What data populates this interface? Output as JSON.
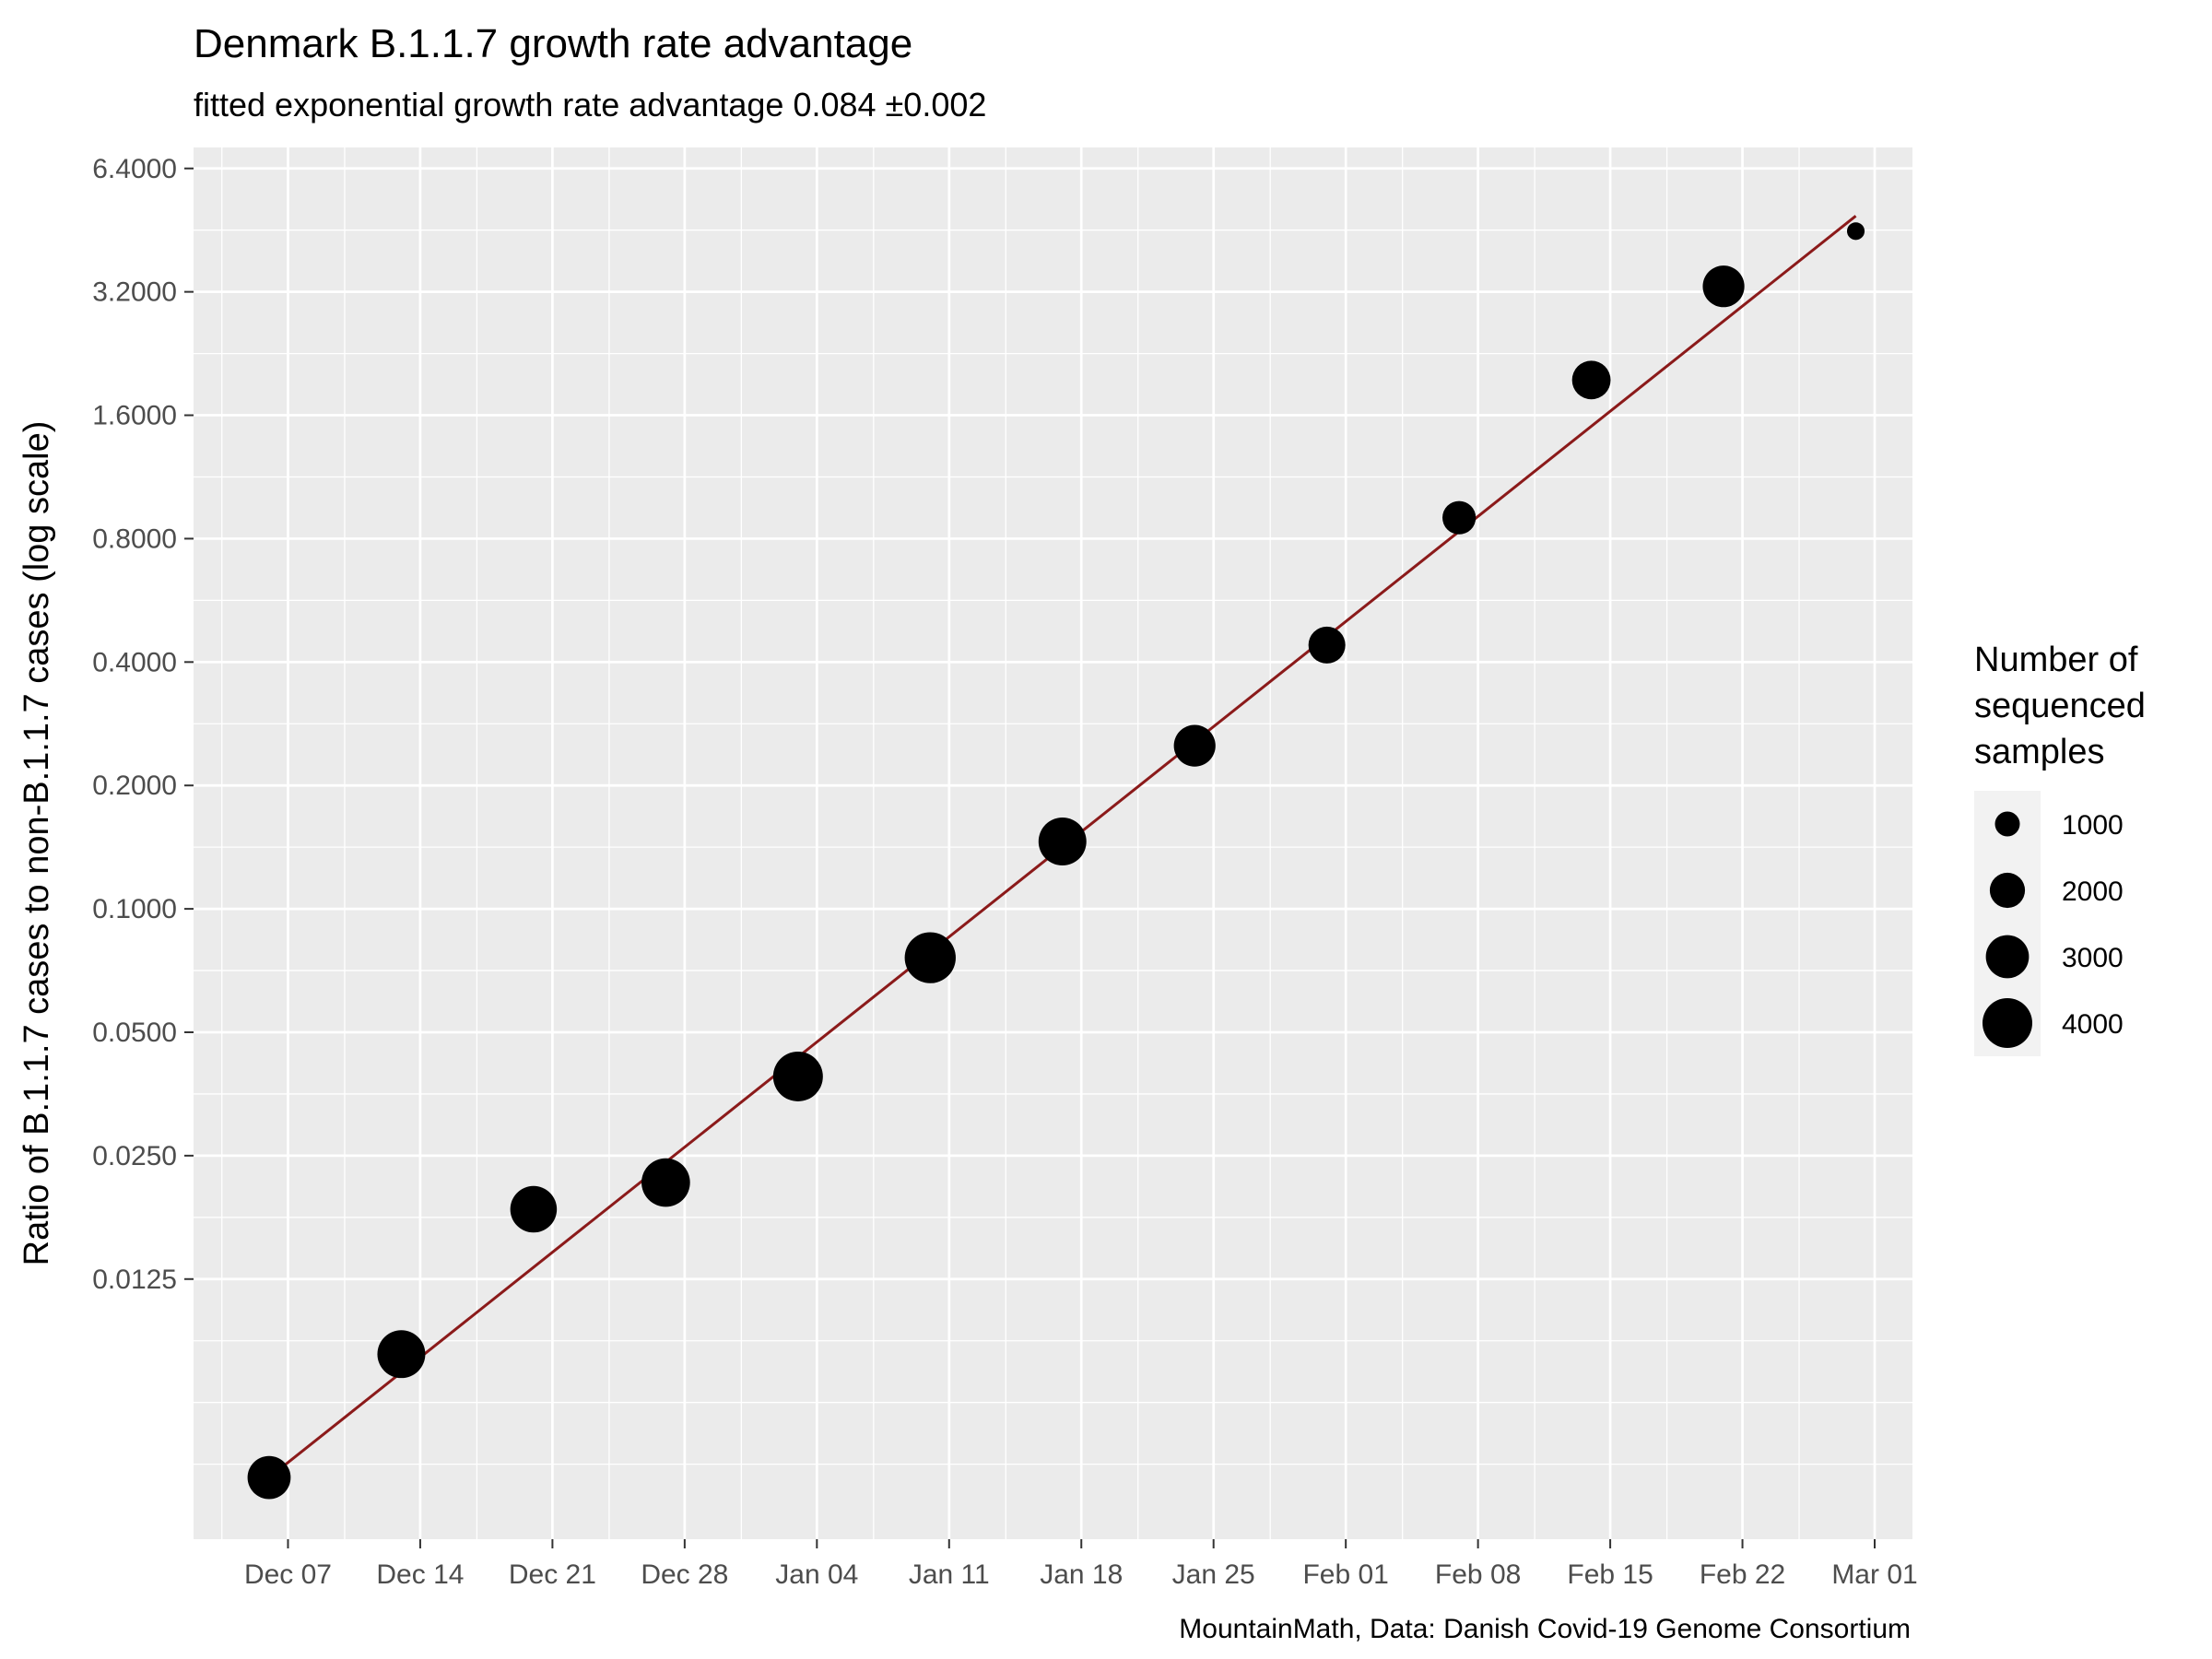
{
  "chart_data": {
    "type": "scatter",
    "title": "Denmark B.1.1.7 growth rate advantage",
    "subtitle": "fitted exponential growth rate advantage 0.084 ±0.002",
    "xlabel": "",
    "ylabel": "Ratio of B.1.1.7 cases to non-B.1.1.7 cases (log scale)",
    "caption": "MountainMath, Data: Danish Covid-19 Genome Consortium",
    "y_scale": "log2",
    "ylim": [
      0.0029,
      7.2
    ],
    "xlim": [
      "2020-12-02",
      "2021-03-03"
    ],
    "x_ticks": [
      "2020-12-07",
      "2020-12-14",
      "2020-12-21",
      "2020-12-28",
      "2021-01-04",
      "2021-01-11",
      "2021-01-18",
      "2021-01-25",
      "2021-02-01",
      "2021-02-08",
      "2021-02-15",
      "2021-02-22",
      "2021-03-01"
    ],
    "x_tick_labels": [
      "Dec 07",
      "Dec 14",
      "Dec 21",
      "Dec 28",
      "Jan 04",
      "Jan 11",
      "Jan 18",
      "Jan 25",
      "Feb 01",
      "Feb 08",
      "Feb 15",
      "Feb 22",
      "Mar 01"
    ],
    "y_ticks": [
      0.0125,
      0.025,
      0.05,
      0.1,
      0.2,
      0.4,
      0.8,
      1.6,
      3.2,
      6.4
    ],
    "y_tick_labels": [
      "0.0125",
      "0.0250",
      "0.0500",
      "0.1000",
      "0.2000",
      "0.4000",
      "0.8000",
      "1.6000",
      "3.2000",
      "6.4000"
    ],
    "grid": true,
    "point_color": "#000000",
    "line_color": "#8B1A1A",
    "panel_color": "#EBEBEB",
    "series": [
      {
        "values": [
          {
            "x": "2020-12-06",
            "y": 0.0041,
            "samples": 3000
          },
          {
            "x": "2020-12-13",
            "y": 0.0082,
            "samples": 3700
          },
          {
            "x": "2020-12-20",
            "y": 0.0185,
            "samples": 3500
          },
          {
            "x": "2020-12-27",
            "y": 0.0215,
            "samples": 3800
          },
          {
            "x": "2021-01-03",
            "y": 0.039,
            "samples": 4000
          },
          {
            "x": "2021-01-10",
            "y": 0.076,
            "samples": 4200
          },
          {
            "x": "2021-01-17",
            "y": 0.146,
            "samples": 3700
          },
          {
            "x": "2021-01-24",
            "y": 0.25,
            "samples": 2800
          },
          {
            "x": "2021-01-31",
            "y": 0.44,
            "samples": 2200
          },
          {
            "x": "2021-02-07",
            "y": 0.9,
            "samples": 1800
          },
          {
            "x": "2021-02-14",
            "y": 1.95,
            "samples": 2400
          },
          {
            "x": "2021-02-21",
            "y": 3.3,
            "samples": 2800
          },
          {
            "x": "2021-02-28",
            "y": 4.5,
            "samples": 500
          }
        ]
      }
    ],
    "fit_line": [
      {
        "x": "2020-12-06",
        "y": 0.0041
      },
      {
        "x": "2021-02-28",
        "y": 4.9
      }
    ],
    "legend": {
      "title": [
        "Number of",
        "sequenced",
        "samples"
      ],
      "placement": "right",
      "items": [
        {
          "label": "1000",
          "value": 1000
        },
        {
          "label": "2000",
          "value": 2000
        },
        {
          "label": "3000",
          "value": 3000
        },
        {
          "label": "4000",
          "value": 4000
        }
      ]
    }
  }
}
